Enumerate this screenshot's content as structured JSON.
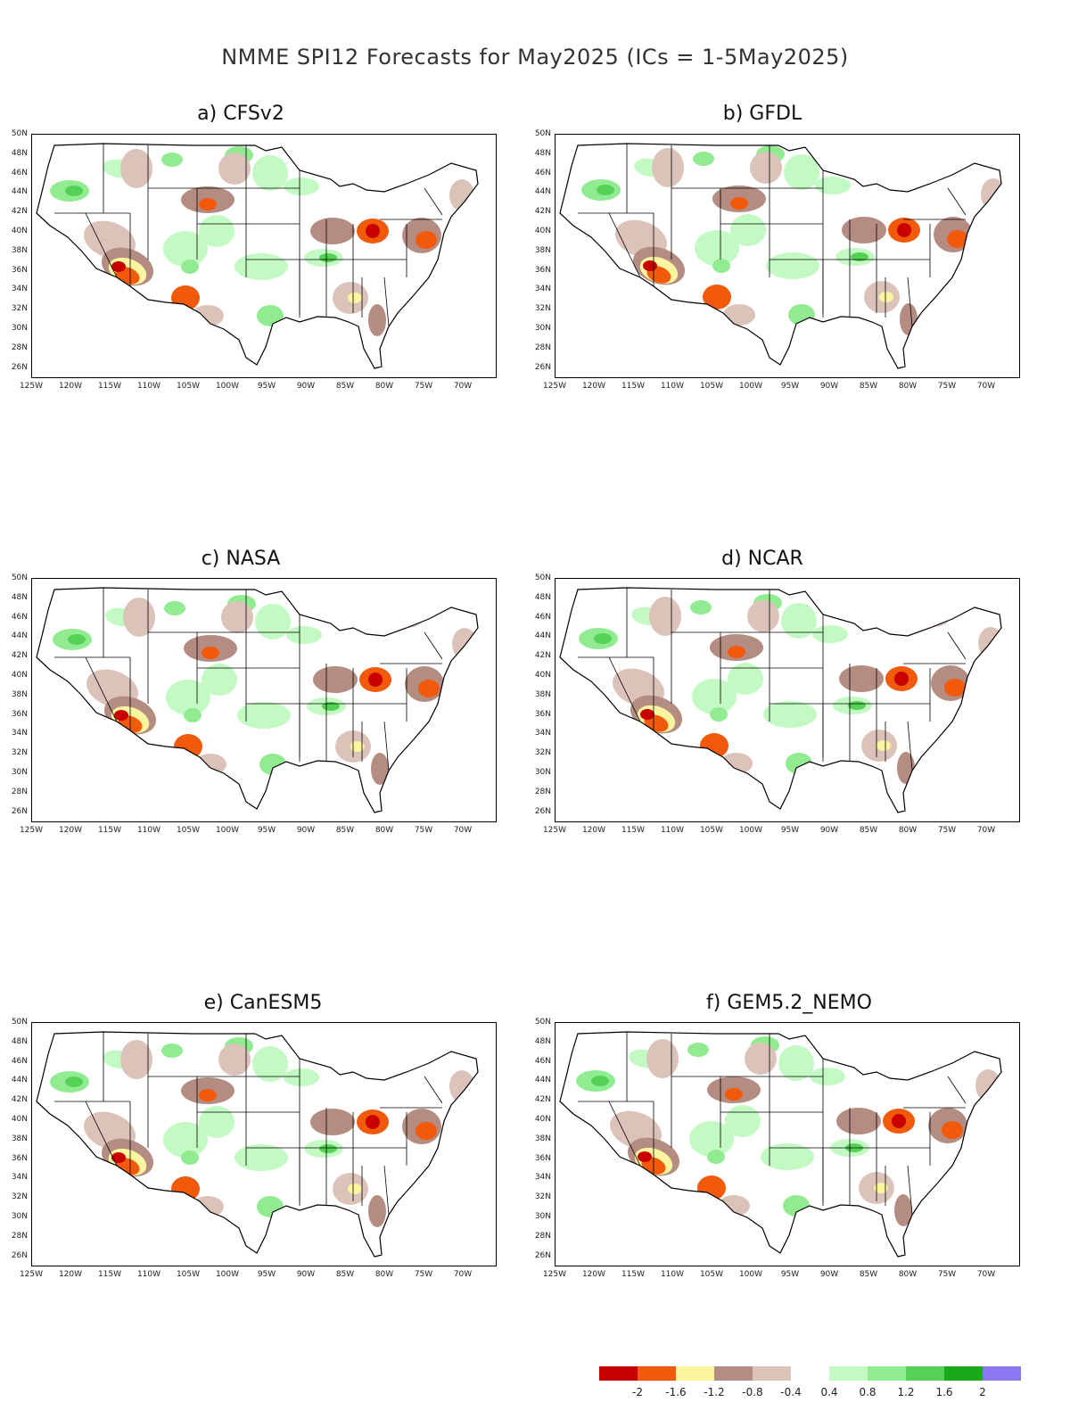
{
  "title": "NMME SPI12 Forecasts for May2025 (ICs = 1-5May2025)",
  "lat_labels": [
    "50N",
    "48N",
    "46N",
    "44N",
    "42N",
    "40N",
    "38N",
    "36N",
    "34N",
    "32N",
    "30N",
    "28N",
    "26N"
  ],
  "lon_labels": [
    "125W",
    "120W",
    "115W",
    "110W",
    "105W",
    "100W",
    "95W",
    "90W",
    "85W",
    "80W",
    "75W",
    "70W"
  ],
  "panels": [
    {
      "id": "a",
      "title": "a) CFSv2"
    },
    {
      "id": "b",
      "title": "b) GFDL"
    },
    {
      "id": "c",
      "title": "c) NASA"
    },
    {
      "id": "d",
      "title": "d) NCAR"
    },
    {
      "id": "e",
      "title": "e) CanESM5"
    },
    {
      "id": "f",
      "title": "f) GEM5.2_NEMO"
    }
  ],
  "legend": {
    "colors": [
      "#c80000",
      "#f05a0a",
      "#fbf5a0",
      "#b48c82",
      "#dcc3b9",
      "#ffffff",
      "#c3fac3",
      "#91eb91",
      "#55d255",
      "#19aa19",
      "#8c78f0"
    ],
    "labels": [
      "-2",
      "-1.6",
      "-1.2",
      "-0.8",
      "-0.4",
      "0.4",
      "0.8",
      "1.2",
      "1.6",
      "2"
    ]
  },
  "colors": {
    "dry_strong": "#c80000",
    "dry_mod": "#f05a0a",
    "dry_light": "#fbf5a0",
    "brown": "#b48c82",
    "tan": "#dcc3b9",
    "wet_light": "#c3fac3",
    "wet_mod": "#91eb91",
    "wet_strong": "#55d255",
    "wet_vstrong": "#19aa19"
  }
}
